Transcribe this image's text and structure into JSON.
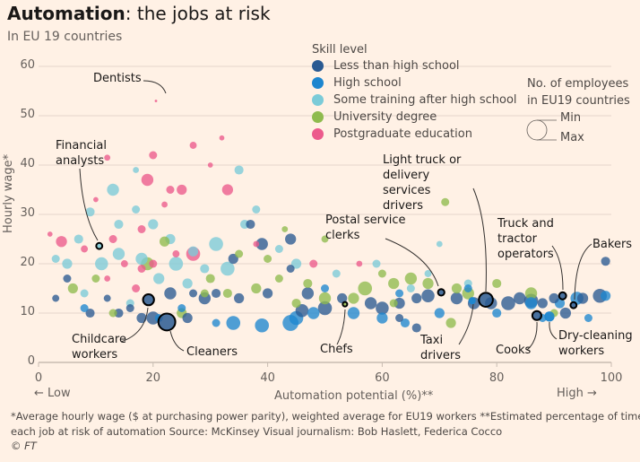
{
  "header": {
    "title_bold": "Automation",
    "title_rest": ": the jobs at risk",
    "subtitle": "In EU 19 countries"
  },
  "legend": {
    "title": "Skill level",
    "items": [
      {
        "label": "Less than high school",
        "color": "#2a5a92"
      },
      {
        "label": "High school",
        "color": "#1d86cf"
      },
      {
        "label": "Some training after high school",
        "color": "#7bcbd8"
      },
      {
        "label": "University degree",
        "color": "#8fbb4e"
      },
      {
        "label": "Postgraduate education",
        "color": "#ec5a8c"
      }
    ],
    "size_title_1": "No. of employees",
    "size_title_2": "in EU19 countries",
    "size_min": "Min",
    "size_max": "Max"
  },
  "footer": {
    "line1": "*Average hourly wage ($ at purchasing power parity), weighted average for EU19 workers   **Estimated percentage of time in",
    "line2": "each job at risk of automation   Source: McKinsey   Visual journalism: Bob Haslett, Federica Cocco",
    "copyright": "© FT"
  },
  "chart_data": {
    "type": "scatter",
    "xlabel": "Automation potential (%)**",
    "ylabel": "Hourly wage*",
    "x_low_label": "← Low",
    "x_high_label": "High →",
    "xlim": [
      0,
      100
    ],
    "ylim": [
      0,
      60
    ],
    "xticks": [
      "0",
      "20",
      "40",
      "60",
      "80",
      "100"
    ],
    "yticks": [
      "0",
      "10",
      "20",
      "30",
      "40",
      "50",
      "60"
    ],
    "grid": "horizontal",
    "size_encoding": "employees (relative 0-1)",
    "skill_levels": [
      "Less than high school",
      "High school",
      "Some training after high school",
      "University degree",
      "Postgraduate education"
    ],
    "points": [
      [
        4,
        24.5,
        4,
        0.45
      ],
      [
        12,
        41.5,
        4,
        0.2
      ],
      [
        13,
        25,
        4,
        0.3
      ],
      [
        18,
        27,
        4,
        0.3
      ],
      [
        19,
        37,
        4,
        0.5
      ],
      [
        20,
        42,
        4,
        0.3
      ],
      [
        27,
        44,
        4,
        0.25
      ],
      [
        23,
        35,
        4,
        0.3
      ],
      [
        22,
        32,
        4,
        0.2
      ],
      [
        25,
        35,
        4,
        0.4
      ],
      [
        33,
        35,
        4,
        0.45
      ],
      [
        32,
        45.5,
        4,
        0.15
      ],
      [
        27,
        22,
        4,
        0.6
      ],
      [
        18,
        19,
        4,
        0.3
      ],
      [
        15,
        20,
        4,
        0.25
      ],
      [
        10,
        33,
        4,
        0.15
      ],
      [
        8,
        23,
        4,
        0.25
      ],
      [
        20,
        20,
        4,
        0.3
      ],
      [
        48,
        20,
        4,
        0.3
      ],
      [
        56,
        20,
        4,
        0.2
      ],
      [
        2,
        26,
        4,
        0.15
      ],
      [
        38,
        24,
        4,
        0.2
      ],
      [
        17,
        15,
        4,
        0.3
      ],
      [
        24,
        22,
        4,
        0.25
      ],
      [
        12,
        17,
        4,
        0.2
      ],
      [
        30,
        40,
        4,
        0.15
      ],
      [
        9,
        30.5,
        2,
        0.35
      ],
      [
        13,
        35,
        2,
        0.5
      ],
      [
        17,
        39,
        2,
        0.2
      ],
      [
        17,
        31,
        2,
        0.3
      ],
      [
        14,
        28,
        2,
        0.35
      ],
      [
        20,
        28,
        2,
        0.4
      ],
      [
        23,
        25,
        2,
        0.4
      ],
      [
        31,
        24,
        2,
        0.6
      ],
      [
        36,
        28,
        2,
        0.35
      ],
      [
        14,
        22,
        2,
        0.5
      ],
      [
        11,
        20,
        2,
        0.55
      ],
      [
        5,
        20,
        2,
        0.4
      ],
      [
        24,
        20,
        2,
        0.6
      ],
      [
        27,
        22.5,
        2,
        0.4
      ],
      [
        18,
        21,
        2,
        0.5
      ],
      [
        29,
        19,
        2,
        0.35
      ],
      [
        33,
        19,
        2,
        0.6
      ],
      [
        21,
        17,
        2,
        0.45
      ],
      [
        26,
        16,
        2,
        0.4
      ],
      [
        45,
        20,
        2,
        0.4
      ],
      [
        52,
        18,
        2,
        0.3
      ],
      [
        59,
        20,
        2,
        0.3
      ],
      [
        70,
        24,
        2,
        0.2
      ],
      [
        75,
        16,
        2,
        0.3
      ],
      [
        16,
        12,
        2,
        0.3
      ],
      [
        8,
        14,
        2,
        0.3
      ],
      [
        35,
        39,
        2,
        0.35
      ],
      [
        38,
        31,
        2,
        0.3
      ],
      [
        3,
        21,
        2,
        0.3
      ],
      [
        7,
        25,
        2,
        0.35
      ],
      [
        42,
        23,
        2,
        0.3
      ],
      [
        65,
        15,
        2,
        0.3
      ],
      [
        68,
        18,
        2,
        0.25
      ],
      [
        19,
        20,
        3,
        0.55
      ],
      [
        30,
        17,
        3,
        0.35
      ],
      [
        29,
        14,
        3,
        0.3
      ],
      [
        33,
        14,
        3,
        0.35
      ],
      [
        38,
        15,
        3,
        0.4
      ],
      [
        42,
        17,
        3,
        0.3
      ],
      [
        47,
        16,
        3,
        0.35
      ],
      [
        50,
        13,
        3,
        0.5
      ],
      [
        55,
        13,
        3,
        0.45
      ],
      [
        57,
        15,
        3,
        0.6
      ],
      [
        60,
        18,
        3,
        0.3
      ],
      [
        62,
        16,
        3,
        0.45
      ],
      [
        65,
        17,
        3,
        0.5
      ],
      [
        68,
        16,
        3,
        0.45
      ],
      [
        73,
        15,
        3,
        0.4
      ],
      [
        75,
        14,
        3,
        0.5
      ],
      [
        80,
        16,
        3,
        0.35
      ],
      [
        86,
        14,
        3,
        0.5
      ],
      [
        22,
        24.5,
        3,
        0.4
      ],
      [
        35,
        22,
        3,
        0.3
      ],
      [
        40,
        21,
        3,
        0.3
      ],
      [
        43,
        27,
        3,
        0.2
      ],
      [
        50,
        25,
        3,
        0.25
      ],
      [
        71,
        32.5,
        3,
        0.3
      ],
      [
        90,
        10,
        3,
        0.3
      ],
      [
        25,
        10,
        3,
        0.4
      ],
      [
        45,
        12,
        3,
        0.35
      ],
      [
        10,
        17,
        3,
        0.3
      ],
      [
        6,
        15,
        3,
        0.4
      ],
      [
        13,
        10,
        3,
        0.3
      ],
      [
        62,
        12,
        3,
        0.3
      ],
      [
        72,
        8,
        3,
        0.4
      ],
      [
        21,
        9,
        1,
        0.3
      ],
      [
        45,
        9,
        1,
        0.6
      ],
      [
        31,
        8,
        1,
        0.3
      ],
      [
        34,
        8,
        1,
        0.6
      ],
      [
        39,
        7.5,
        1,
        0.6
      ],
      [
        44,
        8,
        1,
        0.7
      ],
      [
        48,
        10,
        1,
        0.5
      ],
      [
        55,
        10,
        1,
        0.5
      ],
      [
        60,
        9,
        1,
        0.45
      ],
      [
        64,
        8,
        1,
        0.35
      ],
      [
        70,
        10,
        1,
        0.4
      ],
      [
        86,
        12,
        1,
        0.5
      ],
      [
        88,
        9,
        1,
        0.3
      ],
      [
        91,
        12,
        1,
        0.4
      ],
      [
        94,
        13,
        1,
        0.55
      ],
      [
        96,
        9,
        1,
        0.3
      ],
      [
        99,
        13.5,
        1,
        0.4
      ],
      [
        25,
        11,
        1,
        0.3
      ],
      [
        8,
        11,
        1,
        0.3
      ],
      [
        80,
        10,
        1,
        0.35
      ],
      [
        75,
        15,
        1,
        0.3
      ],
      [
        50,
        15,
        1,
        0.3
      ],
      [
        63,
        14,
        1,
        0.3
      ],
      [
        89.2,
        9.3,
        1,
        0.4
      ],
      [
        75.7,
        12.5,
        1,
        0.25
      ],
      [
        9,
        10,
        0,
        0.35
      ],
      [
        14,
        10,
        0,
        0.35
      ],
      [
        18,
        9,
        0,
        0.4
      ],
      [
        20,
        9,
        0,
        0.55
      ],
      [
        26,
        9,
        0,
        0.4
      ],
      [
        23,
        14,
        0,
        0.5
      ],
      [
        31,
        14,
        0,
        0.35
      ],
      [
        35,
        13,
        0,
        0.4
      ],
      [
        37,
        28,
        0,
        0.35
      ],
      [
        39,
        24,
        0,
        0.5
      ],
      [
        44,
        25,
        0,
        0.45
      ],
      [
        44,
        19,
        0,
        0.3
      ],
      [
        34,
        21,
        0,
        0.4
      ],
      [
        40,
        14,
        0,
        0.4
      ],
      [
        47,
        14,
        0,
        0.5
      ],
      [
        46,
        10.5,
        0,
        0.55
      ],
      [
        50,
        11,
        0,
        0.6
      ],
      [
        53,
        13,
        0,
        0.4
      ],
      [
        58,
        12,
        0,
        0.5
      ],
      [
        60,
        11,
        0,
        0.55
      ],
      [
        63,
        12,
        0,
        0.45
      ],
      [
        66,
        13,
        0,
        0.4
      ],
      [
        68,
        13.5,
        0,
        0.55
      ],
      [
        73,
        13,
        0,
        0.5
      ],
      [
        76,
        12,
        0,
        0.5
      ],
      [
        79,
        12,
        0,
        0.5
      ],
      [
        82,
        12,
        0,
        0.6
      ],
      [
        84,
        13,
        0,
        0.5
      ],
      [
        86,
        12.5,
        0,
        0.6
      ],
      [
        88,
        12,
        0,
        0.4
      ],
      [
        90,
        13,
        0,
        0.4
      ],
      [
        92,
        10,
        0,
        0.45
      ],
      [
        95,
        13,
        0,
        0.45
      ],
      [
        98,
        13.5,
        0,
        0.6
      ],
      [
        99,
        20.5,
        0,
        0.35
      ],
      [
        63,
        9,
        0,
        0.3
      ],
      [
        66,
        7,
        0,
        0.35
      ],
      [
        3,
        13,
        0,
        0.25
      ],
      [
        5,
        17,
        0,
        0.3
      ],
      [
        12,
        13,
        0,
        0.25
      ],
      [
        29,
        13,
        0,
        0.5
      ],
      [
        16,
        11,
        0,
        0.3
      ],
      [
        27,
        14,
        0,
        0.3
      ]
    ],
    "highlighted_jobs": [
      {
        "label": "Dentists",
        "x": 20.5,
        "y": 53,
        "skill": 4,
        "size": 0.02,
        "outlined": false
      },
      {
        "label": "Financial analysts",
        "x": 10.6,
        "y": 23.6,
        "skill": 2,
        "size": 0.2,
        "outlined": true
      },
      {
        "label": "Childcare workers",
        "x": 19.2,
        "y": 12.7,
        "skill": 0,
        "size": 0.45,
        "outlined": true
      },
      {
        "label": "Cleaners",
        "x": 22.4,
        "y": 8.2,
        "skill": 0,
        "size": 0.75,
        "outlined": true
      },
      {
        "label": "Chefs",
        "x": 53.5,
        "y": 11.8,
        "skill": 3,
        "size": 0.12,
        "outlined": true
      },
      {
        "label": "Postal service clerks",
        "x": 70.3,
        "y": 14.2,
        "skill": 0,
        "size": 0.22,
        "outlined": true
      },
      {
        "label": "Light truck or delivery services drivers",
        "x": 78.1,
        "y": 12.7,
        "skill": 0,
        "size": 0.6,
        "outlined": true
      },
      {
        "label": "Taxi drivers",
        "x": 75.7,
        "y": 12.5,
        "skill": 1,
        "size": 0.25,
        "outlined": false
      },
      {
        "label": "Cooks",
        "x": 87,
        "y": 9.5,
        "skill": 0,
        "size": 0.35,
        "outlined": true
      },
      {
        "label": "Truck and tractor operators",
        "x": 91.5,
        "y": 13.5,
        "skill": 0,
        "size": 0.25,
        "outlined": true
      },
      {
        "label": "Bakers",
        "x": 93.4,
        "y": 11.6,
        "skill": 0,
        "size": 0.2,
        "outlined": true
      },
      {
        "label": "Dry-cleaning workers",
        "x": 89.2,
        "y": 9.3,
        "skill": 1,
        "size": 0.4,
        "outlined": false
      }
    ]
  }
}
